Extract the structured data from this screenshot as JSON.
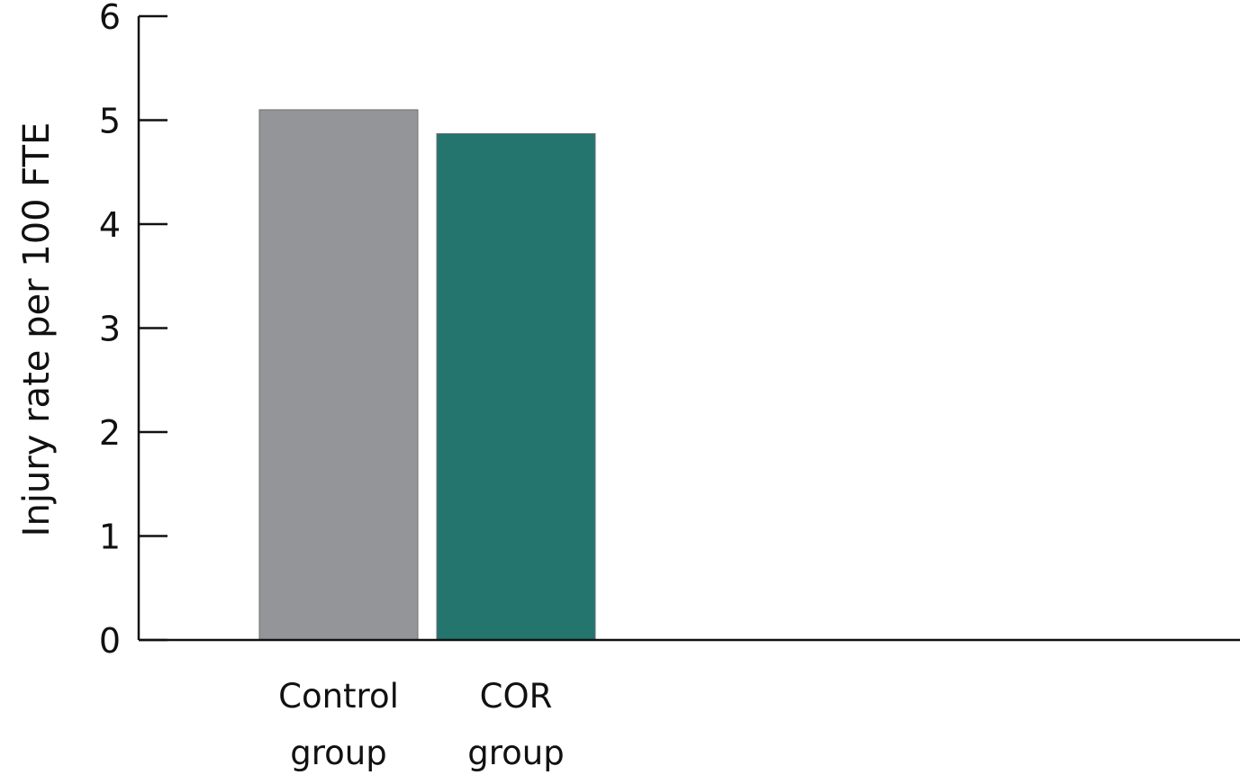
{
  "chart_data": {
    "type": "bar",
    "title": "",
    "xlabel": "",
    "ylabel": "Injury rate per 100 FTE",
    "ylim": [
      0,
      6
    ],
    "yticks": [
      "0",
      "1",
      "2",
      "3",
      "4",
      "5",
      "6"
    ],
    "categories": [
      [
        "Control",
        "group"
      ],
      [
        "COR",
        "group"
      ]
    ],
    "values": [
      5.1,
      4.87
    ],
    "colors": [
      "#939598",
      "#23756e"
    ],
    "grid": false,
    "legend": "none"
  }
}
